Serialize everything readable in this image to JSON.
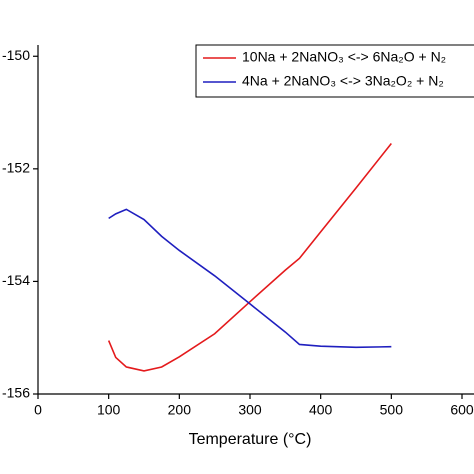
{
  "chart_data": {
    "type": "line",
    "x_label": "Temperature (°C)",
    "x": [
      100,
      110,
      125,
      150,
      175,
      200,
      250,
      300,
      350,
      370,
      400,
      450,
      500
    ],
    "series": [
      {
        "name": "10Na + 2NaNO₃ <-> 6Na₂O + N₂",
        "color": "#e41a1c",
        "values": [
          -155.05,
          -155.35,
          -155.52,
          -155.59,
          -155.52,
          -155.34,
          -154.93,
          -154.36,
          -153.8,
          -153.59,
          -153.12,
          -152.34,
          -151.55
        ]
      },
      {
        "name": "4Na + 2NaNO₃ <-> 3Na₂O₂ + N₂",
        "color": "#1f1fbf",
        "values": [
          -152.88,
          -152.8,
          -152.72,
          -152.9,
          -153.2,
          -153.45,
          -153.9,
          -154.4,
          -154.9,
          -155.12,
          -155.15,
          -155.17,
          -155.16
        ]
      }
    ],
    "xlim": [
      0,
      600
    ],
    "xticks": [
      0,
      100,
      200,
      300,
      400,
      500,
      600
    ],
    "ylim": [
      -156,
      -149.8
    ],
    "yticks": [
      -156,
      -154,
      -152,
      -150
    ],
    "legend": "upper right"
  }
}
